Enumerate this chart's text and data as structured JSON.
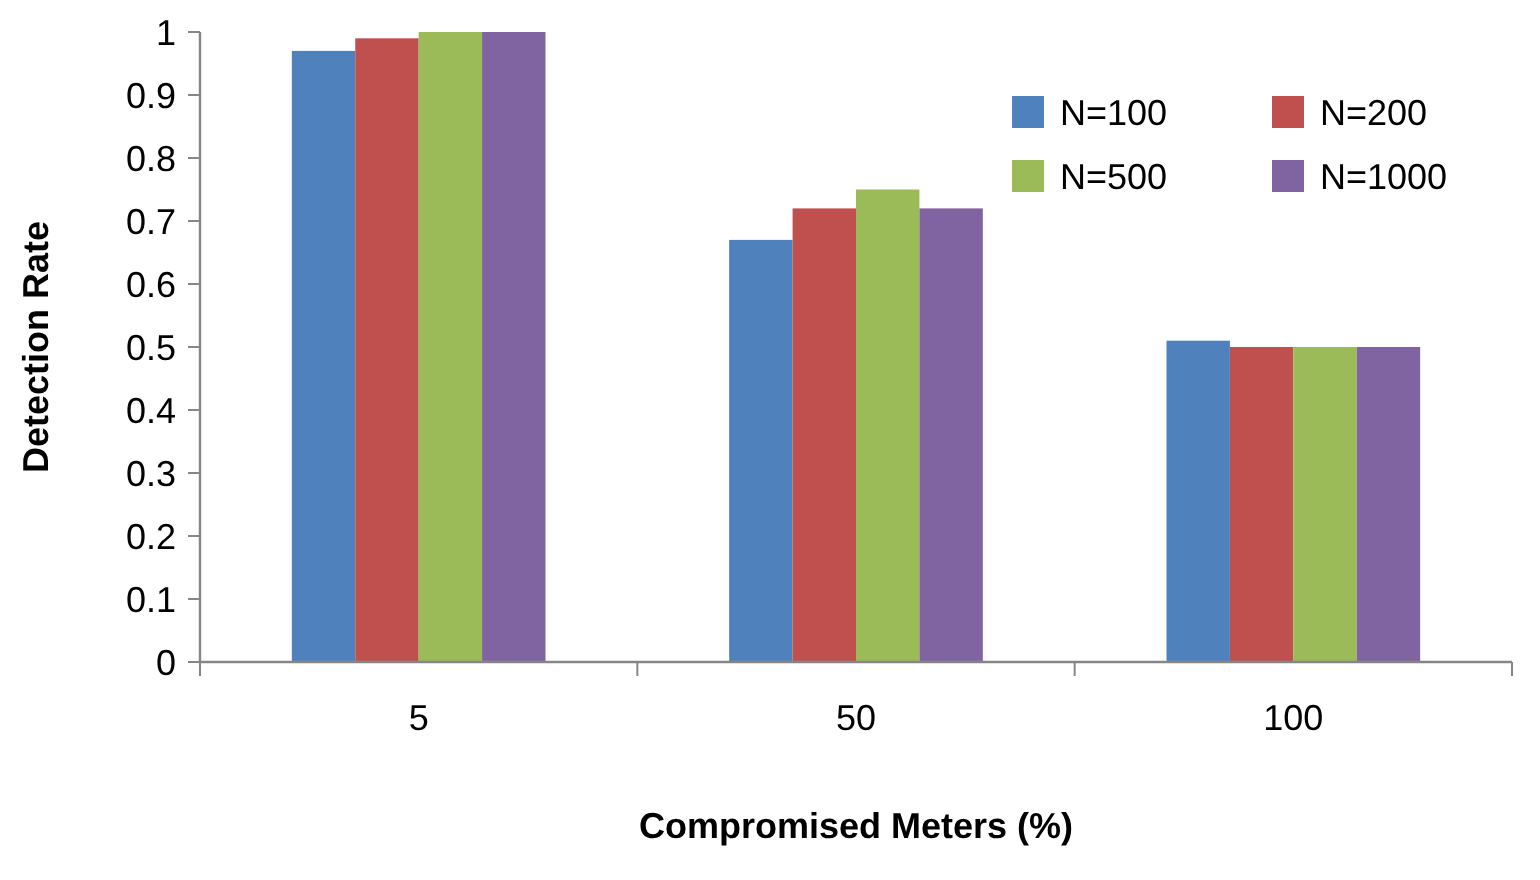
{
  "chart_data": {
    "type": "bar",
    "xlabel": "Compromised Meters (%)",
    "ylabel": "Detection Rate",
    "categories": [
      "5",
      "50",
      "100"
    ],
    "series": [
      {
        "name": "N=100",
        "color": "#4f81bd",
        "values": [
          0.97,
          0.67,
          0.51
        ]
      },
      {
        "name": "N=200",
        "color": "#c0504d",
        "values": [
          0.99,
          0.72,
          0.5
        ]
      },
      {
        "name": "N=500",
        "color": "#9bbb59",
        "values": [
          1.0,
          0.75,
          0.5
        ]
      },
      {
        "name": "N=1000",
        "color": "#8064a2",
        "values": [
          1.0,
          0.72,
          0.5
        ]
      }
    ],
    "ylim": [
      0,
      1
    ],
    "yticks": [
      0,
      0.1,
      0.2,
      0.3,
      0.4,
      0.5,
      0.6,
      0.7,
      0.8,
      0.9,
      1
    ],
    "grid": false,
    "legend": "top right"
  }
}
